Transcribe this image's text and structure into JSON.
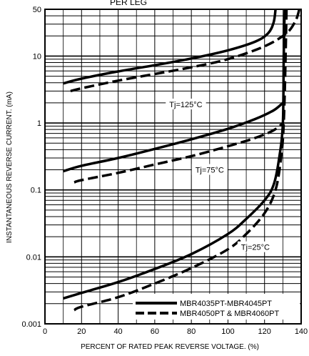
{
  "chart_data": {
    "type": "line",
    "title": "PER LEG",
    "xlabel": "PERCENT OF RATED PEAK REVERSE VOLTAGE. (%)",
    "ylabel": "INSTANTANEOUS REVERSE CURRENT. (mA)",
    "xlim": [
      0,
      140
    ],
    "ylim": [
      0.001,
      50
    ],
    "y_scale": "log",
    "grid": true,
    "x_ticks": [
      0,
      20,
      40,
      60,
      80,
      100,
      120,
      140
    ],
    "y_ticks": [
      {
        "value": 0.001,
        "label": "0.001"
      },
      {
        "value": 0.01,
        "label": "0.01"
      },
      {
        "value": 0.1,
        "label": "0.1"
      },
      {
        "value": 1,
        "label": "1"
      },
      {
        "value": 10,
        "label": "10"
      },
      {
        "value": 50,
        "label": "50"
      }
    ],
    "legend": {
      "placement": "bottom-right",
      "entries": [
        {
          "label": "MBR4035PT-MBR4045PT",
          "style": "solid"
        },
        {
          "label": "MBR4050PT & MBR4060PT",
          "style": "dashed"
        }
      ]
    },
    "annotations": [
      {
        "text": "Tj=125°C",
        "x": 77,
        "y": 1.9
      },
      {
        "text": "Tj=75°C",
        "x": 90,
        "y": 0.2
      },
      {
        "text": "Tj=25°C",
        "x": 115,
        "y": 0.014
      }
    ],
    "series": [
      {
        "group": "Tj=125°C",
        "style": "solid",
        "points": [
          [
            10,
            3.9
          ],
          [
            20,
            4.6
          ],
          [
            40,
            5.9
          ],
          [
            60,
            7.3
          ],
          [
            80,
            9.2
          ],
          [
            100,
            12.2
          ],
          [
            115,
            16.5
          ],
          [
            122,
            22
          ],
          [
            125,
            32
          ],
          [
            126,
            50
          ]
        ]
      },
      {
        "group": "Tj=125°C",
        "style": "dashed",
        "points": [
          [
            14,
            3.0
          ],
          [
            20,
            3.3
          ],
          [
            40,
            4.3
          ],
          [
            60,
            5.4
          ],
          [
            80,
            6.8
          ],
          [
            100,
            9.0
          ],
          [
            120,
            14
          ],
          [
            132,
            22
          ],
          [
            137,
            34
          ],
          [
            139,
            50
          ]
        ]
      },
      {
        "group": "Tj=75°C",
        "style": "solid",
        "points": [
          [
            10,
            0.19
          ],
          [
            20,
            0.23
          ],
          [
            40,
            0.3
          ],
          [
            60,
            0.41
          ],
          [
            80,
            0.57
          ],
          [
            100,
            0.82
          ],
          [
            115,
            1.15
          ],
          [
            125,
            1.55
          ],
          [
            130,
            2.0
          ]
        ]
      },
      {
        "group": "Tj=75°C",
        "style": "dashed",
        "points": [
          [
            16,
            0.13
          ],
          [
            20,
            0.14
          ],
          [
            40,
            0.18
          ],
          [
            60,
            0.24
          ],
          [
            80,
            0.32
          ],
          [
            100,
            0.45
          ],
          [
            115,
            0.6
          ],
          [
            125,
            0.78
          ],
          [
            130,
            1.0
          ]
        ]
      },
      {
        "group": "Tj=25°C",
        "style": "solid",
        "points": [
          [
            10,
            0.0024
          ],
          [
            20,
            0.0029
          ],
          [
            40,
            0.0042
          ],
          [
            60,
            0.0066
          ],
          [
            80,
            0.011
          ],
          [
            100,
            0.022
          ],
          [
            110,
            0.037
          ],
          [
            120,
            0.07
          ],
          [
            125,
            0.12
          ],
          [
            128,
            0.3
          ],
          [
            130,
            1.0
          ],
          [
            130.5,
            10
          ],
          [
            131,
            50
          ]
        ]
      },
      {
        "group": "Tj=25°C",
        "style": "dashed",
        "points": [
          [
            16,
            0.0016
          ],
          [
            20,
            0.0018
          ],
          [
            40,
            0.0025
          ],
          [
            60,
            0.004
          ],
          [
            80,
            0.0068
          ],
          [
            100,
            0.013
          ],
          [
            110,
            0.022
          ],
          [
            120,
            0.045
          ],
          [
            126,
            0.1
          ],
          [
            129,
            0.3
          ],
          [
            130.5,
            1.0
          ],
          [
            131.5,
            10
          ],
          [
            132,
            50
          ]
        ]
      }
    ]
  }
}
